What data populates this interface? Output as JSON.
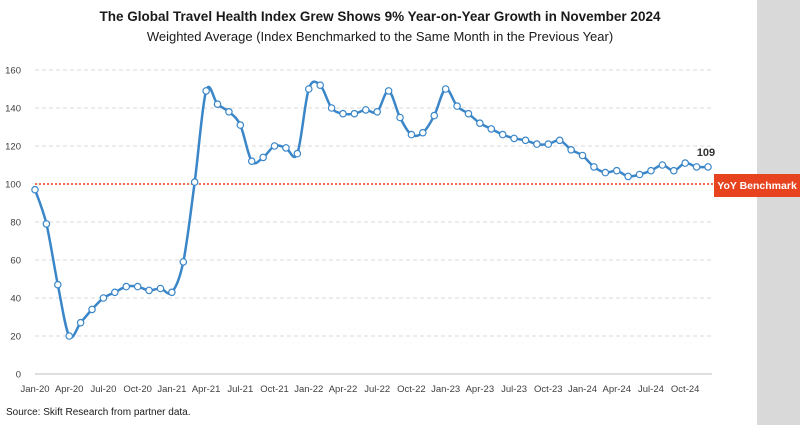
{
  "title": "The Global Travel Health Index Grew Shows 9% Year-on-Year Growth in November 2024",
  "subtitle": "Weighted Average (Index Benchmarked to the Same Month in the Previous Year)",
  "source": "Source: Skift Research from partner data.",
  "benchmark_label": "YoY Benchmark",
  "colors": {
    "line": "#3a86c8",
    "benchmark": "#e8431f",
    "grid": "#d9d9d9",
    "band": "#d9d9d9"
  },
  "chart_data": {
    "type": "line",
    "title": "The Global Travel Health Index Grew Shows 9% Year-on-Year Growth in November 2024",
    "subtitle": "Weighted Average (Index Benchmarked to the Same Month in the Previous Year)",
    "x_tick_labels": [
      "Jan-20",
      "Apr-20",
      "Jul-20",
      "Oct-20",
      "Jan-21",
      "Apr-21",
      "Jul-21",
      "Oct-21",
      "Jan-22",
      "Apr-22",
      "Jul-22",
      "Oct-22",
      "Jan-23",
      "Apr-23",
      "Jul-23",
      "Oct-23",
      "Jan-24",
      "Apr-24",
      "Jul-24",
      "Oct-24"
    ],
    "y_ticks": [
      0,
      20,
      40,
      60,
      80,
      100,
      120,
      140,
      160
    ],
    "ylim": [
      0,
      165
    ],
    "grid": true,
    "benchmark": 100,
    "last_value_label": "109",
    "series": [
      {
        "values": [
          97,
          79,
          47,
          20,
          27,
          34,
          40,
          43,
          46,
          46,
          44,
          45,
          43,
          59,
          101,
          149,
          142,
          138,
          131,
          112,
          114,
          120,
          119,
          116,
          150,
          152,
          140,
          137,
          137,
          139,
          138,
          149,
          135,
          126,
          127,
          136,
          150,
          141,
          137,
          132,
          129,
          126,
          124,
          123,
          121,
          121,
          123,
          118,
          115,
          109,
          106,
          107,
          104,
          105,
          107,
          110,
          107,
          111,
          109,
          109
        ]
      }
    ]
  }
}
